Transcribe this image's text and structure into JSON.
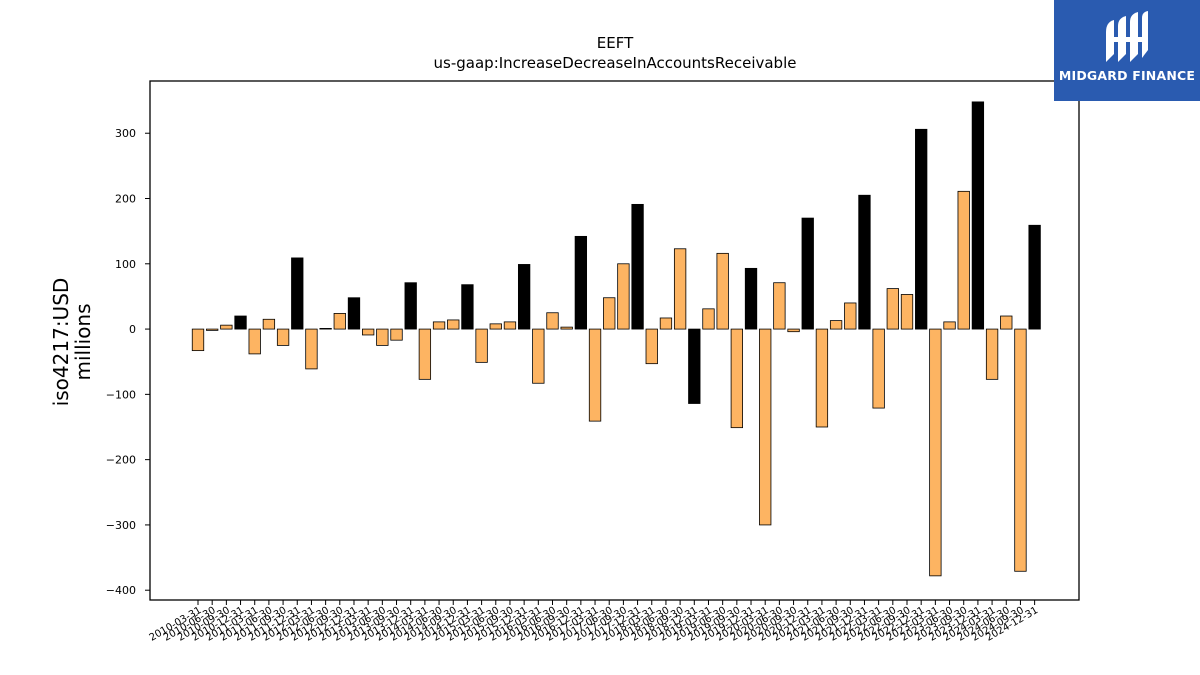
{
  "brand": {
    "name": "MIDGARD FINANCE",
    "bg_color": "#2a5bb0"
  },
  "chart_data": {
    "type": "bar",
    "title": "EEFT",
    "subtitle": "us-gaap:IncreaseDecreaseInAccountsReceivable",
    "ylabel": "iso4217:USD\nmillions",
    "xlabel": "",
    "ylim": [
      -415,
      380
    ],
    "yticks": [
      -400,
      -300,
      -200,
      -100,
      0,
      100,
      200,
      300
    ],
    "grid": false,
    "colors": {
      "quarter": "#fdb462",
      "annual": "#000000",
      "edge": "#000000"
    },
    "categories": [
      "2010-03-31",
      "2010-06-30",
      "2010-09-30",
      "2010-12-31",
      "2011-03-31",
      "2011-06-30",
      "2011-09-30",
      "2011-12-31",
      "2012-03-31",
      "2012-06-30",
      "2012-09-30",
      "2012-12-31",
      "2013-03-31",
      "2013-06-30",
      "2013-09-30",
      "2013-12-31",
      "2014-03-31",
      "2014-06-30",
      "2014-09-30",
      "2014-12-31",
      "2015-03-31",
      "2015-06-30",
      "2015-09-30",
      "2015-12-31",
      "2016-03-31",
      "2016-06-30",
      "2016-09-30",
      "2016-12-31",
      "2017-03-31",
      "2017-06-30",
      "2017-09-30",
      "2017-12-31",
      "2018-03-31",
      "2018-06-30",
      "2018-09-30",
      "2018-12-31",
      "2019-03-31",
      "2019-06-30",
      "2019-09-30",
      "2019-12-31",
      "2020-03-31",
      "2020-06-30",
      "2020-09-30",
      "2020-12-31",
      "2021-03-31",
      "2021-06-30",
      "2021-09-30",
      "2021-12-31",
      "2022-03-31",
      "2022-06-30",
      "2022-09-30",
      "2022-12-31",
      "2023-03-31",
      "2023-06-30",
      "2023-09-30",
      "2023-12-31",
      "2024-03-31",
      "2024-06-30",
      "2024-09-30",
      "2024-12-31"
    ],
    "values": [
      -33,
      -2,
      6,
      20,
      -38,
      15,
      -25,
      109,
      -61,
      1,
      24,
      48,
      -9,
      -25,
      -17,
      71,
      -77,
      11,
      14,
      68,
      -51,
      8,
      11,
      99,
      -83,
      25,
      3,
      142,
      -141,
      48,
      100,
      191,
      -53,
      17,
      123,
      -114,
      31,
      116,
      -151,
      93,
      -300,
      71,
      -4,
      170,
      -150,
      13,
      40,
      205,
      -121,
      62,
      53,
      306,
      -378,
      11,
      211,
      348,
      -77,
      20,
      -371,
      159
    ],
    "series_type": [
      "quarter",
      "quarter",
      "quarter",
      "annual",
      "quarter",
      "quarter",
      "quarter",
      "annual",
      "quarter",
      "quarter",
      "quarter",
      "annual",
      "quarter",
      "quarter",
      "quarter",
      "annual",
      "quarter",
      "quarter",
      "quarter",
      "annual",
      "quarter",
      "quarter",
      "quarter",
      "annual",
      "quarter",
      "quarter",
      "quarter",
      "annual",
      "quarter",
      "quarter",
      "quarter",
      "annual",
      "quarter",
      "quarter",
      "quarter",
      "annual",
      "quarter",
      "quarter",
      "quarter",
      "annual",
      "quarter",
      "quarter",
      "quarter",
      "annual",
      "quarter",
      "quarter",
      "quarter",
      "annual",
      "quarter",
      "quarter",
      "quarter",
      "annual",
      "quarter",
      "quarter",
      "quarter",
      "annual",
      "quarter",
      "quarter",
      "quarter",
      "annual"
    ]
  }
}
